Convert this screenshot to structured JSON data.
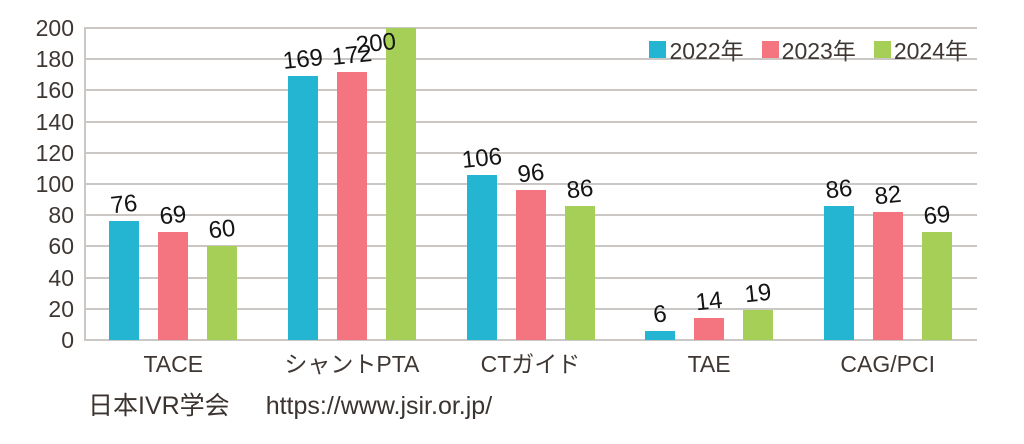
{
  "chart_data": {
    "type": "bar",
    "categories": [
      "TACE",
      "シャントPTA",
      "CTガイド",
      "TAE",
      "CAG/PCI"
    ],
    "series": [
      {
        "name": "2022年",
        "color": "#24b5d3",
        "values": [
          76,
          169,
          106,
          6,
          86
        ]
      },
      {
        "name": "2023年",
        "color": "#f4757f",
        "values": [
          69,
          172,
          96,
          14,
          82
        ]
      },
      {
        "name": "2024年",
        "color": "#a5cf57",
        "values": [
          60,
          200,
          86,
          19,
          69
        ]
      }
    ],
    "title": "",
    "xlabel": "",
    "ylabel": "",
    "ylim": [
      0,
      200
    ],
    "ytick_step": 20,
    "grid": true,
    "legend_position": "top-right",
    "colors": {
      "gridline": "#cac7c4",
      "axis_text": "#3e3733",
      "value_text": "#141414",
      "background": "#ffffff"
    }
  },
  "footer": {
    "org": "日本IVR学会",
    "url": "https://www.jsir.or.jp/"
  }
}
